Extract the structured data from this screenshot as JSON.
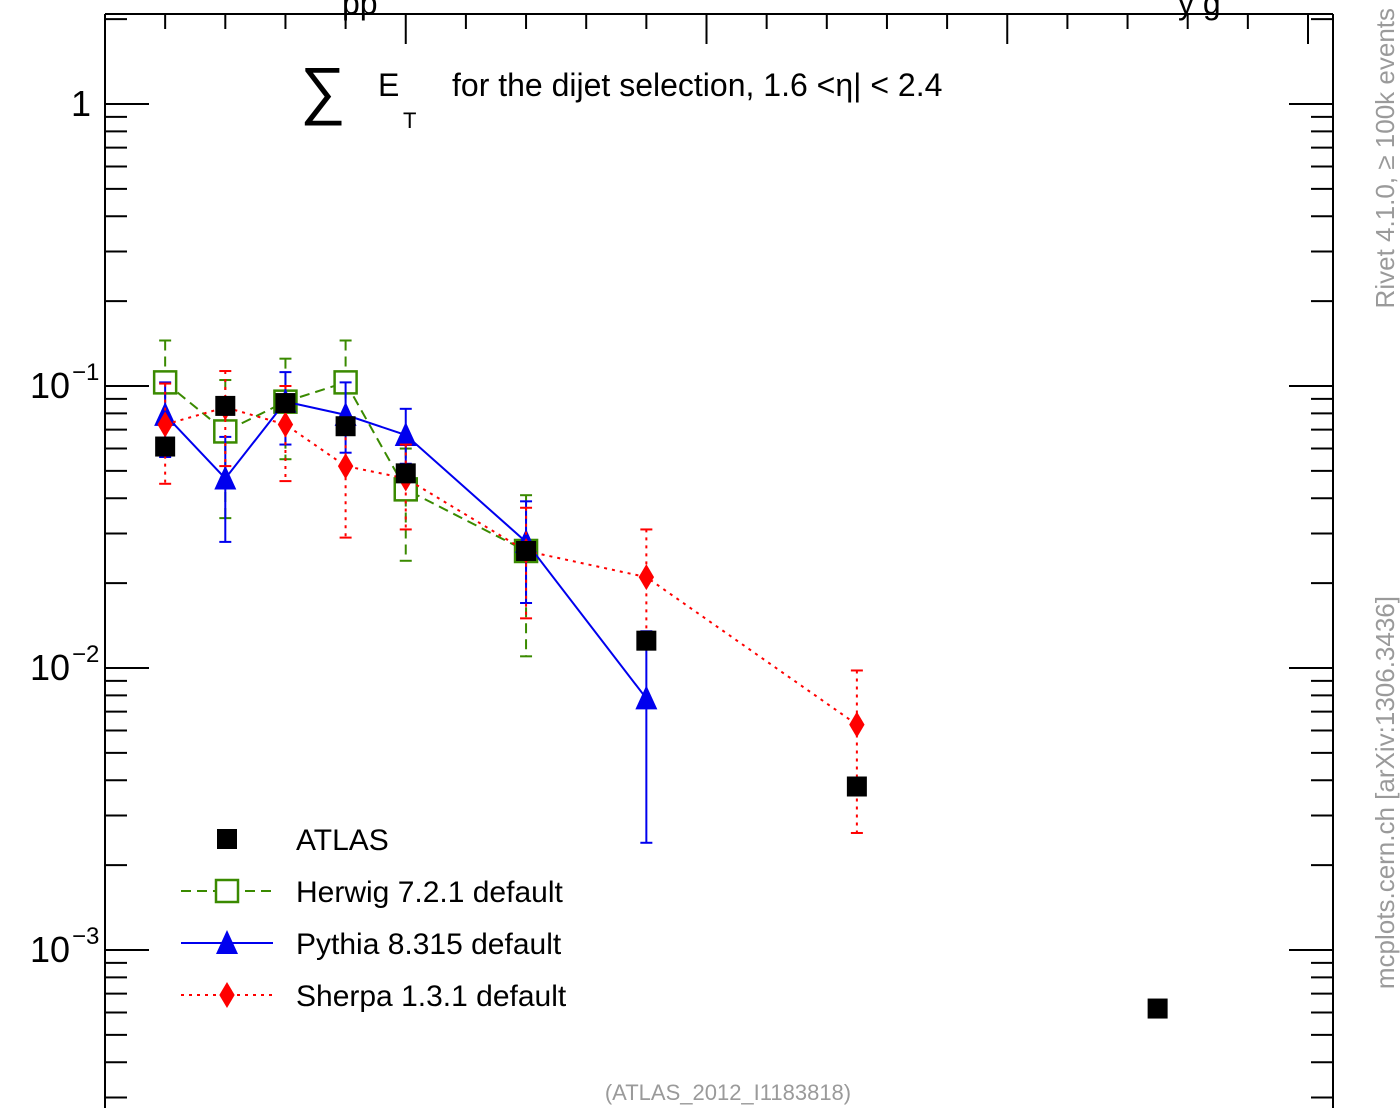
{
  "chart_data": {
    "type": "scatter",
    "title_top_partial": "pp",
    "title_right_partial": "y g",
    "inner_title": {
      "sum_symbol": "∑",
      "symbol": "E",
      "subscript": "T",
      "text": "for the dijet selection, 1.6 <η| < 2.4"
    },
    "footer": "(ATLAS_2012_I1183818)",
    "side_label_top": "Rivet 4.1.0, ≥ 100k events",
    "side_label_bottom": "mcplots.cern.ch [arXiv:1306.3436]",
    "y_scale": "log",
    "ylim": [
      0.0002,
      2.0
    ],
    "xlim": [
      0,
      20
    ],
    "y_tick_labels": [
      {
        "value": 1,
        "label": "1"
      },
      {
        "value": 0.1,
        "label": "10",
        "exp": "−1"
      },
      {
        "value": 0.01,
        "label": "10",
        "exp": "−2"
      },
      {
        "value": 0.001,
        "label": "10",
        "exp": "−3"
      }
    ],
    "legend_position": "bottom-left",
    "series": [
      {
        "name": "ATLAS",
        "style": "data",
        "color": "#000000",
        "marker": "square",
        "x": [
          1,
          2,
          3,
          4,
          5,
          7,
          9,
          12.5,
          17.5
        ],
        "y": [
          0.061,
          0.085,
          0.087,
          0.072,
          0.049,
          0.026,
          0.0125,
          0.0038,
          0.00062
        ]
      },
      {
        "name": "Herwig 7.2.1 default",
        "style": "dashed",
        "color": "#3a8a00",
        "marker": "open-square",
        "x": [
          1,
          2,
          3,
          4,
          5,
          7
        ],
        "y": [
          0.103,
          0.069,
          0.088,
          0.103,
          0.043,
          0.026
        ],
        "y_low": [
          0.06,
          0.034,
          0.055,
          0.07,
          0.024,
          0.011
        ],
        "y_high": [
          0.145,
          0.105,
          0.125,
          0.145,
          0.06,
          0.041
        ]
      },
      {
        "name": "Pythia 8.315 default",
        "style": "solid",
        "color": "#0000ee",
        "marker": "triangle",
        "x": [
          1,
          2,
          3,
          4,
          5,
          7,
          9
        ],
        "y": [
          0.079,
          0.047,
          0.088,
          0.079,
          0.067,
          0.028,
          0.0078
        ],
        "y_low": [
          0.056,
          0.028,
          0.062,
          0.058,
          0.053,
          0.017,
          0.0024
        ],
        "y_high": [
          0.103,
          0.066,
          0.112,
          0.103,
          0.083,
          0.039,
          0.0135
        ]
      },
      {
        "name": "Sherpa 1.3.1 default",
        "style": "dotted",
        "color": "#ff0000",
        "marker": "diamond",
        "x": [
          1,
          2,
          3,
          4,
          5,
          7,
          9,
          12.5
        ],
        "y": [
          0.073,
          0.084,
          0.073,
          0.052,
          0.047,
          0.026,
          0.021,
          0.0063
        ],
        "y_low": [
          0.045,
          0.052,
          0.046,
          0.029,
          0.031,
          0.015,
          0.013,
          0.0026
        ],
        "y_high": [
          0.102,
          0.113,
          0.1,
          0.075,
          0.062,
          0.037,
          0.031,
          0.0098
        ]
      }
    ]
  }
}
